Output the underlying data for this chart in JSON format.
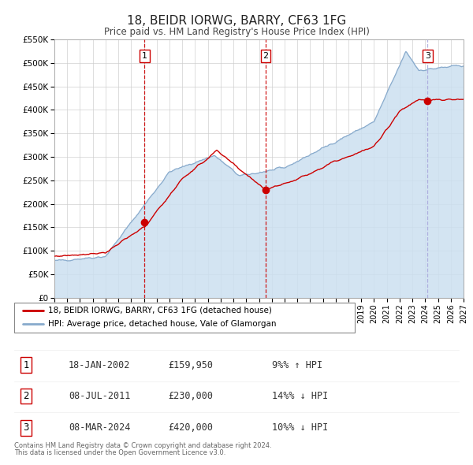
{
  "title": "18, BEIDR IORWG, BARRY, CF63 1FG",
  "subtitle": "Price paid vs. HM Land Registry's House Price Index (HPI)",
  "ylim": [
    0,
    550000
  ],
  "xlim_start": 1995.0,
  "xlim_end": 2027.0,
  "yticks": [
    0,
    50000,
    100000,
    150000,
    200000,
    250000,
    300000,
    350000,
    400000,
    450000,
    500000,
    550000
  ],
  "ytick_labels": [
    "£0",
    "£50K",
    "£100K",
    "£150K",
    "£200K",
    "£250K",
    "£300K",
    "£350K",
    "£400K",
    "£450K",
    "£500K",
    "£550K"
  ],
  "xtick_years": [
    1995,
    1996,
    1997,
    1998,
    1999,
    2000,
    2001,
    2002,
    2003,
    2004,
    2005,
    2006,
    2007,
    2008,
    2009,
    2010,
    2011,
    2012,
    2013,
    2014,
    2015,
    2016,
    2017,
    2018,
    2019,
    2020,
    2021,
    2022,
    2023,
    2024,
    2025,
    2026,
    2027
  ],
  "red_line_color": "#cc0000",
  "blue_line_color": "#88aacc",
  "blue_fill_color": "#cce0f0",
  "sale_marker_color": "#cc0000",
  "legend_line1": "18, BEIDR IORWG, BARRY, CF63 1FG (detached house)",
  "legend_line2": "HPI: Average price, detached house, Vale of Glamorgan",
  "transactions": [
    {
      "num": 1,
      "date_str": "18-JAN-2002",
      "year": 2002.05,
      "price": 159950,
      "pct": "9%",
      "dir": "↑",
      "rel": "HPI"
    },
    {
      "num": 2,
      "date_str": "08-JUL-2011",
      "year": 2011.52,
      "price": 230000,
      "pct": "14%",
      "dir": "↓",
      "rel": "HPI"
    },
    {
      "num": 3,
      "date_str": "08-MAR-2024",
      "year": 2024.18,
      "price": 420000,
      "pct": "10%",
      "dir": "↓",
      "rel": "HPI"
    }
  ],
  "vline_colors": [
    "#cc0000",
    "#cc0000",
    "#aaaadd"
  ],
  "footer_line1": "Contains HM Land Registry data © Crown copyright and database right 2024.",
  "footer_line2": "This data is licensed under the Open Government Licence v3.0.",
  "background_color": "#ffffff",
  "grid_color": "#cccccc",
  "num_box_color": "#cc0000"
}
